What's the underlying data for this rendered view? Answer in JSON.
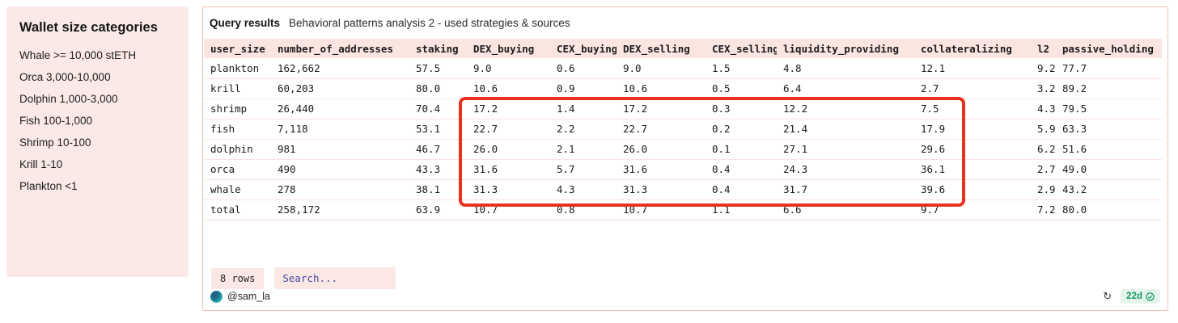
{
  "sidebar": {
    "title": "Wallet size categories",
    "items": [
      "Whale >= 10,000 stETH",
      "Orca 3,000-10,000",
      "Dolphin 1,000-3,000",
      "Fish 100-1,000",
      "Shrimp 10-100",
      "Krill 1-10",
      "Plankton <1"
    ]
  },
  "card": {
    "header": {
      "label": "Query results",
      "title": "Behavioral patterns analysis 2 - used strategies & sources"
    },
    "table": {
      "columns": [
        "user_size",
        "number_of_addresses",
        "staking",
        "DEX_buying",
        "CEX_buying",
        "DEX_selling",
        "CEX_selling",
        "liquidity_providing",
        "collateralizing",
        "l2",
        "passive_holding"
      ],
      "rows": [
        [
          "plankton",
          "162,662",
          "57.5",
          "9.0",
          "0.6",
          "9.0",
          "1.5",
          "4.8",
          "12.1",
          "9.2",
          "77.7"
        ],
        [
          "krill",
          "60,203",
          "80.0",
          "10.6",
          "0.9",
          "10.6",
          "0.5",
          "6.4",
          "2.7",
          "3.2",
          "89.2"
        ],
        [
          "shrimp",
          "26,440",
          "70.4",
          "17.2",
          "1.4",
          "17.2",
          "0.3",
          "12.2",
          "7.5",
          "4.3",
          "79.5"
        ],
        [
          "fish",
          "7,118",
          "53.1",
          "22.7",
          "2.2",
          "22.7",
          "0.2",
          "21.4",
          "17.9",
          "5.9",
          "63.3"
        ],
        [
          "dolphin",
          "981",
          "46.7",
          "26.0",
          "2.1",
          "26.0",
          "0.1",
          "27.1",
          "29.6",
          "6.2",
          "51.6"
        ],
        [
          "orca",
          "490",
          "43.3",
          "31.6",
          "5.7",
          "31.6",
          "0.4",
          "24.3",
          "36.1",
          "2.7",
          "49.0"
        ],
        [
          "whale",
          "278",
          "38.1",
          "31.3",
          "4.3",
          "31.3",
          "0.4",
          "31.7",
          "39.6",
          "2.9",
          "43.2"
        ],
        [
          "total",
          "258,172",
          "63.9",
          "10.7",
          "0.8",
          "10.7",
          "1.1",
          "6.6",
          "9.7",
          "7.2",
          "80.0"
        ]
      ]
    },
    "highlight": {
      "shape": "rectangle",
      "color": "#e8321f",
      "rows": [
        "shrimp",
        "fish",
        "dolphin",
        "orca",
        "whale"
      ],
      "columns": [
        "DEX_buying",
        "CEX_buying",
        "DEX_selling",
        "CEX_selling",
        "liquidity_providing",
        "collateralizing"
      ]
    },
    "controls": {
      "row_count": "8 rows",
      "search_placeholder": "Search..."
    },
    "footer": {
      "author": "@sam_la",
      "refresh_icon": "refresh-icon",
      "age_badge": "22d"
    }
  },
  "colors": {
    "panel_pink": "#fbe9e7",
    "table_header_pink": "#fbe5e1",
    "row_line_pink": "#f9e3de",
    "card_border": "#f3c3b5",
    "highlight_red": "#e8321f",
    "search_text_indigo": "#4449a0",
    "badge_green": "#149a60",
    "badge_green_bg": "#e6f5ec"
  }
}
